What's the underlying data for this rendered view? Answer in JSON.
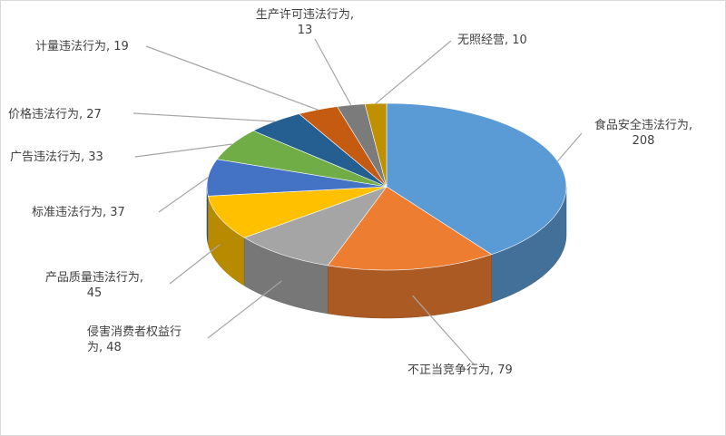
{
  "chart_data": {
    "type": "pie",
    "title": "",
    "style": "3d-exploded-none",
    "slices": [
      {
        "label": "食品安全违法行为",
        "value": 208,
        "color": "#5B9BD5"
      },
      {
        "label": "不正当竞争行为",
        "value": 79,
        "color": "#ED7D31"
      },
      {
        "label": "侵害消费者权益行为",
        "value": 48,
        "color": "#A5A5A5"
      },
      {
        "label": "产品质量违法行为",
        "value": 45,
        "color": "#FFC000"
      },
      {
        "label": "标准违法行为",
        "value": 37,
        "color": "#4472C4"
      },
      {
        "label": "广告违法行为",
        "value": 33,
        "color": "#70AD47"
      },
      {
        "label": "价格违法行为",
        "value": 27,
        "color": "#255E91"
      },
      {
        "label": "计量违法行为",
        "value": 19,
        "color": "#C55A11"
      },
      {
        "label": "生产许可违法行为",
        "value": 13,
        "color": "#7B7B7B"
      },
      {
        "label": "无照经营",
        "value": 10,
        "color": "#BF9000"
      }
    ],
    "label_texts": [
      {
        "line1": "食品安全违法行为,",
        "line2": "208"
      },
      {
        "line1": "不正当竞争行为, 79",
        "line2": ""
      },
      {
        "line1": "侵害消费者权益行",
        "line2": "为, 48"
      },
      {
        "line1": "产品质量违法行为,",
        "line2": "45"
      },
      {
        "line1": "标准违法行为, 37",
        "line2": ""
      },
      {
        "line1": "广告违法行为, 33",
        "line2": ""
      },
      {
        "line1": "价格违法行为, 27",
        "line2": ""
      },
      {
        "line1": "计量违法行为, 19",
        "line2": ""
      },
      {
        "line1": "生产许可违法行为,",
        "line2": "13"
      },
      {
        "line1": "无照经营, 10",
        "line2": ""
      }
    ],
    "leader_color": "#A6A6A6",
    "legend": "none"
  }
}
